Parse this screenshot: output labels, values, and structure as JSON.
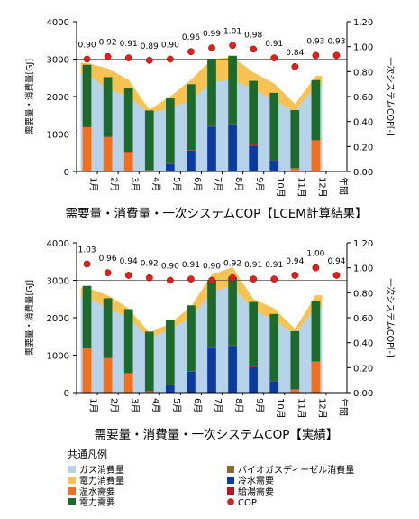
{
  "chart_data": [
    {
      "type": "bar",
      "subtype": "stacked-area-bar-with-line",
      "title": "需要量・消費量・一次システムCOP【LCEM計算結果】",
      "ylabel": "需要量・消費量[GJ]",
      "y2label": "一次システムCOP[-]",
      "ylim": [
        0,
        4000
      ],
      "y2lim": [
        0,
        1.2
      ],
      "yticks": [
        "0",
        "1000",
        "2000",
        "3000",
        "4000"
      ],
      "y2ticks": [
        "0.00",
        "0.20",
        "0.40",
        "0.60",
        "0.80",
        "1.00",
        "1.20"
      ],
      "categories": [
        "1月",
        "2月",
        "3月",
        "4月",
        "5月",
        "6月",
        "7月",
        "8月",
        "9月",
        "10月",
        "11月",
        "12月",
        "年間"
      ],
      "area_series": [
        {
          "name": "ガス消費量",
          "values": [
            2600,
            2200,
            2000,
            1550,
            1700,
            1900,
            2400,
            2450,
            2200,
            1900,
            1600,
            2300
          ]
        },
        {
          "name": "電力消費量",
          "values": [
            2900,
            2750,
            2450,
            1650,
            2000,
            2450,
            3000,
            3050,
            2650,
            2350,
            1800,
            2550
          ]
        }
      ],
      "bar_series": [
        {
          "name": "温水需要",
          "values": [
            1180,
            920,
            520,
            30,
            0,
            0,
            0,
            0,
            0,
            0,
            80,
            830
          ]
        },
        {
          "name": "冷水需要",
          "values": [
            0,
            0,
            0,
            0,
            200,
            560,
            1200,
            1250,
            680,
            300,
            0,
            0
          ]
        },
        {
          "name": "給湯需要",
          "values": [
            10,
            10,
            10,
            10,
            10,
            10,
            10,
            10,
            40,
            10,
            10,
            10
          ]
        },
        {
          "name": "電力需要",
          "values": [
            1660,
            1590,
            1700,
            1590,
            1740,
            1760,
            1800,
            1830,
            1700,
            1790,
            1550,
            1600
          ]
        }
      ],
      "cop": {
        "name": "COP",
        "values": [
          0.9,
          0.92,
          0.91,
          0.89,
          0.9,
          0.96,
          0.99,
          1.01,
          0.98,
          0.91,
          0.84,
          0.93,
          0.93
        ]
      },
      "cop_labels": [
        "0.90",
        "0.92",
        "0.91",
        "0.89",
        "0.90",
        "0.96",
        "0.99",
        "1.01",
        "0.98",
        "0.91",
        "0.84",
        "0.93",
        "0.93"
      ]
    },
    {
      "type": "bar",
      "subtype": "stacked-area-bar-with-line",
      "title": "需要量・消費量・一次システムCOP【実績】",
      "ylabel": "需要量・消費量[GJ]",
      "y2label": "一次システムCOP[-]",
      "ylim": [
        0,
        4000
      ],
      "y2lim": [
        0,
        1.2
      ],
      "yticks": [
        "0",
        "1000",
        "2000",
        "3000",
        "4000"
      ],
      "y2ticks": [
        "0.00",
        "0.20",
        "0.40",
        "0.60",
        "0.80",
        "1.00",
        "1.20"
      ],
      "categories": [
        "1月",
        "2月",
        "3月",
        "4月",
        "5月",
        "6月",
        "7月",
        "8月",
        "9月",
        "10月",
        "11月",
        "12月",
        "年間"
      ],
      "area_series": [
        {
          "name": "ガス消費量",
          "values": [
            2550,
            2250,
            2000,
            1450,
            1700,
            2000,
            2700,
            2850,
            2200,
            1950,
            1550,
            2300
          ]
        },
        {
          "name": "電力消費量",
          "values": [
            2800,
            2600,
            2250,
            1600,
            1850,
            2300,
            3150,
            3350,
            2500,
            2250,
            1700,
            2600
          ]
        }
      ],
      "bar_series": [
        {
          "name": "温水需要",
          "values": [
            1180,
            920,
            520,
            30,
            0,
            0,
            0,
            0,
            0,
            0,
            80,
            830
          ]
        },
        {
          "name": "冷水需要",
          "values": [
            0,
            0,
            0,
            0,
            200,
            560,
            1200,
            1250,
            680,
            300,
            0,
            0
          ]
        },
        {
          "name": "給湯需要",
          "values": [
            10,
            10,
            10,
            10,
            10,
            10,
            10,
            10,
            40,
            10,
            10,
            10
          ]
        },
        {
          "name": "電力需要",
          "values": [
            1660,
            1590,
            1700,
            1590,
            1740,
            1760,
            1800,
            1830,
            1700,
            1790,
            1550,
            1600
          ]
        }
      ],
      "cop": {
        "name": "COP",
        "values": [
          1.03,
          0.96,
          0.94,
          0.92,
          0.9,
          0.91,
          0.9,
          0.92,
          0.91,
          0.91,
          0.94,
          1.0,
          0.94
        ]
      },
      "cop_labels": [
        "1.03",
        "0.96",
        "0.94",
        "0.92",
        "0.90",
        "0.91",
        "0.90",
        "0.92",
        "0.91",
        "0.91",
        "0.94",
        "1.00",
        "0.94"
      ]
    }
  ],
  "legend": {
    "title": "共通凡例",
    "items": [
      {
        "label": "ガス消費量",
        "color": "#b6d3ea",
        "marker": "square"
      },
      {
        "label": "バイオガスディーゼル消費量",
        "color": "#8a6d2a",
        "marker": "square"
      },
      {
        "label": "電力消費量",
        "color": "#f9c353",
        "marker": "square"
      },
      {
        "label": "冷水需要",
        "color": "#0a3a9e",
        "marker": "square"
      },
      {
        "label": "温水需要",
        "color": "#f07020",
        "marker": "square"
      },
      {
        "label": "給湯需要",
        "color": "#b0182a",
        "marker": "square"
      },
      {
        "label": "電力需要",
        "color": "#1e6a2c",
        "marker": "square"
      },
      {
        "label": "COP",
        "color": "#e0201a",
        "marker": "circle"
      }
    ]
  },
  "colors": {
    "gas": "#b6d3ea",
    "electric_consumption": "#f9c353",
    "hot_water": "#f07020",
    "cold_water": "#0a3a9e",
    "hot_supply": "#b0182a",
    "electric_demand": "#1e6a2c",
    "cop": "#e0201a"
  }
}
